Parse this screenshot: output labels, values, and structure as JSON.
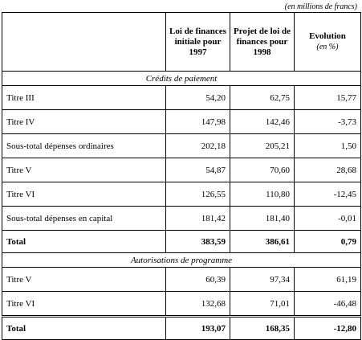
{
  "unit_note": "(en millions de francs)",
  "headers": {
    "col1": "Loi de finances initiale pour 1997",
    "col2": "Projet de loi de finances pour 1998",
    "col3": "Evolution",
    "col3_unit": "(en %)"
  },
  "sections": [
    {
      "title": "Crédits de paiement",
      "rows": [
        {
          "label": "Titre III",
          "v1997": "54,20",
          "v1998": "62,75",
          "evolution": "15,77"
        },
        {
          "label": "Titre IV",
          "v1997": "147,98",
          "v1998": "142,46",
          "evolution": "-3,73"
        },
        {
          "label": "Sous-total dépenses ordinaires",
          "v1997": "202,18",
          "v1998": "205,21",
          "evolution": "1,50"
        },
        {
          "label": "Titre V",
          "v1997": "54,87",
          "v1998": "70,60",
          "evolution": "28,68"
        },
        {
          "label": "Titre VI",
          "v1997": "126,55",
          "v1998": "110,80",
          "evolution": "-12,45"
        },
        {
          "label": "Sous-total dépenses en capital",
          "v1997": "181,42",
          "v1998": "181,40",
          "evolution": "-0,01"
        }
      ],
      "total": {
        "label": "Total",
        "v1997": "383,59",
        "v1998": "386,61",
        "evolution": "0,79"
      }
    },
    {
      "title": "Autorisations de programme",
      "rows": [
        {
          "label": "Titre V",
          "v1997": "60,39",
          "v1998": "97,34",
          "evolution": "61,19"
        },
        {
          "label": "Titre VI",
          "v1997": "132,68",
          "v1998": "71,01",
          "evolution": "-46,48"
        }
      ],
      "total": {
        "label": "Total",
        "v1997": "193,07",
        "v1998": "168,35",
        "evolution": "-12,80"
      }
    }
  ]
}
